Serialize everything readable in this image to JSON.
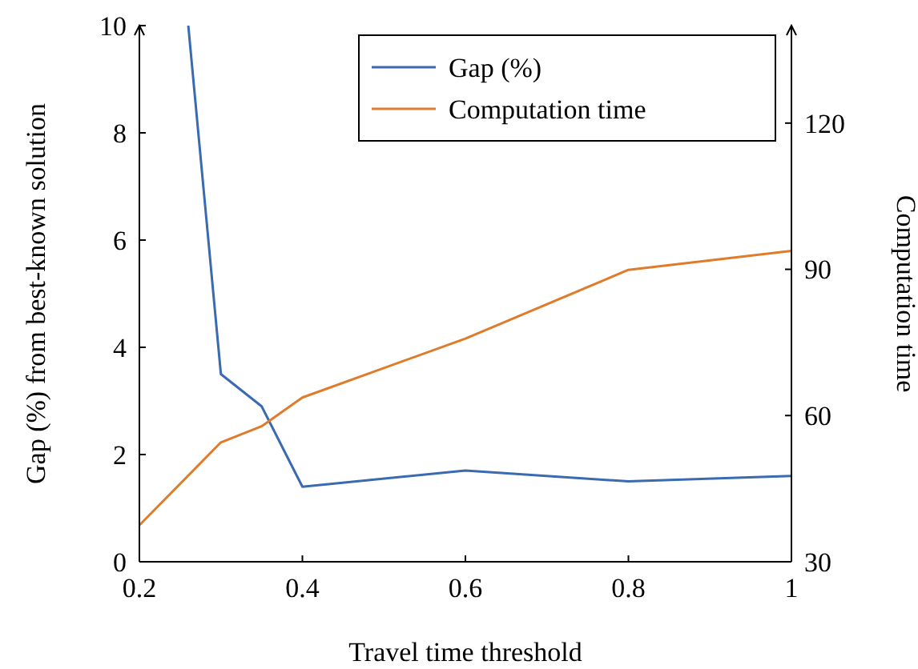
{
  "chart_data": {
    "type": "line",
    "xlabel": "Travel time threshold",
    "ylabel": "Gap (%) from best-known solution",
    "y2label": "Computation time",
    "xlim": [
      0.2,
      1
    ],
    "xticks": [
      0.2,
      0.4,
      0.6,
      0.8,
      1
    ],
    "ylim": [
      0,
      10
    ],
    "yticks": [
      0,
      2,
      4,
      6,
      8,
      10
    ],
    "y2lim": [
      30,
      140
    ],
    "y2ticks": [
      30,
      60,
      90,
      120
    ],
    "legend": "top right",
    "grid": false,
    "marker": "none",
    "line_style": "solid",
    "series": [
      {
        "name": "Gap (%)",
        "color": "#3a6bb0",
        "x": [
          0.26,
          0.3,
          0.35,
          0.4,
          0.6,
          0.8,
          1
        ],
        "values": [
          10,
          3.5,
          2.9,
          1.4,
          1.7,
          1.5,
          1.6
        ]
      },
      {
        "name": "Computation time",
        "color": "#e07b2a",
        "axis": "y2",
        "x": [
          0.2,
          0.3,
          0.35,
          0.4,
          0.6,
          0.8,
          1
        ],
        "values": [
          37.5,
          54.5,
          57.8,
          63.7,
          75.8,
          89.9,
          93.8
        ]
      }
    ]
  }
}
